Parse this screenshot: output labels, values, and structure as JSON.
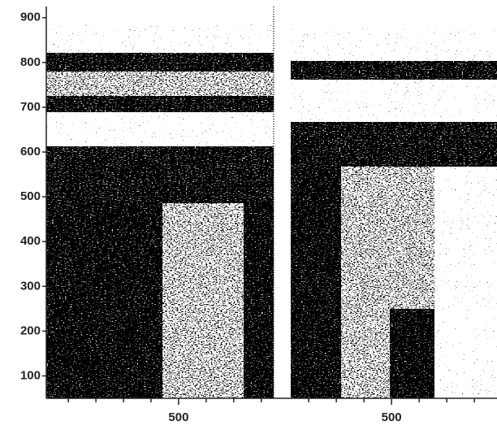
{
  "chart_data": {
    "type": "dot-raster",
    "ylim": [
      50,
      925
    ],
    "yticks": [
      100,
      200,
      300,
      400,
      500,
      600,
      700,
      800,
      900
    ],
    "panels": [
      {
        "xlim": [
          20,
          845
        ],
        "xticks": [
          500
        ],
        "xminorticks": [
          100,
          200,
          300,
          400,
          600,
          700,
          800
        ]
      },
      {
        "xlim": [
          126,
          882
        ],
        "xticks": [
          500
        ],
        "xminorticks": [
          200,
          300,
          400,
          600,
          700,
          800
        ]
      }
    ]
  }
}
